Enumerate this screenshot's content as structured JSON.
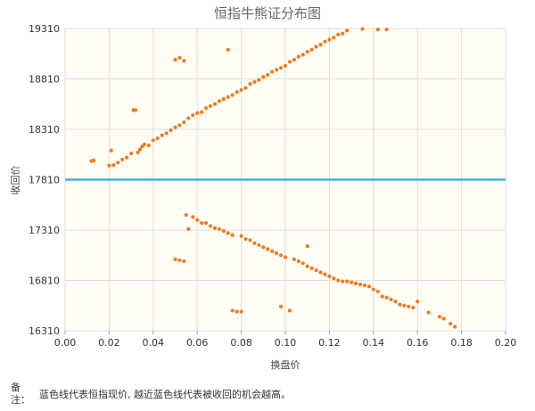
{
  "chart_data": {
    "type": "scatter",
    "title": "恒指牛熊证分布图",
    "xlabel": "换盘价",
    "ylabel": "收回价",
    "xlim": [
      0,
      0.2
    ],
    "ylim": [
      16310,
      19310
    ],
    "x_ticks": [
      "0.00",
      "0.02",
      "0.04",
      "0.06",
      "0.08",
      "0.10",
      "0.12",
      "0.14",
      "0.16",
      "0.18",
      "0.20"
    ],
    "y_ticks": [
      "16310",
      "16810",
      "17310",
      "17810",
      "18310",
      "18810",
      "19310"
    ],
    "reference_line": {
      "y": 17810,
      "color": "#3fb6d4"
    },
    "point_color": "#f07a1c",
    "plot_background": "#fffdf5",
    "grid": true,
    "bull_points": [
      [
        0.012,
        17995
      ],
      [
        0.013,
        18000
      ],
      [
        0.02,
        17950
      ],
      [
        0.021,
        18100
      ],
      [
        0.022,
        17955
      ],
      [
        0.024,
        17980
      ],
      [
        0.026,
        18010
      ],
      [
        0.028,
        18030
      ],
      [
        0.03,
        18070
      ],
      [
        0.031,
        18500
      ],
      [
        0.032,
        18500
      ],
      [
        0.033,
        18080
      ],
      [
        0.034,
        18110
      ],
      [
        0.035,
        18140
      ],
      [
        0.036,
        18160
      ],
      [
        0.038,
        18150
      ],
      [
        0.04,
        18200
      ],
      [
        0.042,
        18220
      ],
      [
        0.044,
        18250
      ],
      [
        0.046,
        18270
      ],
      [
        0.048,
        18300
      ],
      [
        0.05,
        18330
      ],
      [
        0.05,
        19000
      ],
      [
        0.052,
        18350
      ],
      [
        0.052,
        19020
      ],
      [
        0.054,
        18380
      ],
      [
        0.054,
        18990
      ],
      [
        0.056,
        18420
      ],
      [
        0.058,
        18450
      ],
      [
        0.06,
        18470
      ],
      [
        0.062,
        18480
      ],
      [
        0.064,
        18520
      ],
      [
        0.066,
        18540
      ],
      [
        0.068,
        18560
      ],
      [
        0.07,
        18590
      ],
      [
        0.072,
        18610
      ],
      [
        0.074,
        19100
      ],
      [
        0.074,
        18630
      ],
      [
        0.076,
        18650
      ],
      [
        0.078,
        18680
      ],
      [
        0.08,
        18700
      ],
      [
        0.082,
        18720
      ],
      [
        0.084,
        18760
      ],
      [
        0.086,
        18780
      ],
      [
        0.088,
        18800
      ],
      [
        0.09,
        18830
      ],
      [
        0.092,
        18850
      ],
      [
        0.094,
        18880
      ],
      [
        0.096,
        18900
      ],
      [
        0.098,
        18920
      ],
      [
        0.1,
        18940
      ],
      [
        0.102,
        18980
      ],
      [
        0.104,
        19000
      ],
      [
        0.106,
        19030
      ],
      [
        0.108,
        19050
      ],
      [
        0.11,
        19080
      ],
      [
        0.112,
        19100
      ],
      [
        0.114,
        19130
      ],
      [
        0.116,
        19150
      ],
      [
        0.118,
        19180
      ],
      [
        0.12,
        19200
      ],
      [
        0.122,
        19220
      ],
      [
        0.124,
        19250
      ],
      [
        0.126,
        19260
      ],
      [
        0.128,
        19290
      ],
      [
        0.135,
        19305
      ],
      [
        0.142,
        19300
      ],
      [
        0.146,
        19300
      ]
    ],
    "bear_points": [
      [
        0.05,
        17020
      ],
      [
        0.052,
        17010
      ],
      [
        0.054,
        17000
      ],
      [
        0.055,
        17460
      ],
      [
        0.056,
        17320
      ],
      [
        0.058,
        17440
      ],
      [
        0.06,
        17410
      ],
      [
        0.062,
        17380
      ],
      [
        0.064,
        17380
      ],
      [
        0.066,
        17350
      ],
      [
        0.068,
        17330
      ],
      [
        0.07,
        17320
      ],
      [
        0.072,
        17300
      ],
      [
        0.074,
        17280
      ],
      [
        0.076,
        17260
      ],
      [
        0.076,
        16510
      ],
      [
        0.078,
        16500
      ],
      [
        0.08,
        16500
      ],
      [
        0.08,
        17250
      ],
      [
        0.082,
        17220
      ],
      [
        0.084,
        17210
      ],
      [
        0.086,
        17180
      ],
      [
        0.088,
        17160
      ],
      [
        0.09,
        17140
      ],
      [
        0.092,
        17120
      ],
      [
        0.094,
        17100
      ],
      [
        0.096,
        17080
      ],
      [
        0.098,
        17060
      ],
      [
        0.098,
        16550
      ],
      [
        0.1,
        17040
      ],
      [
        0.102,
        16510
      ],
      [
        0.104,
        17020
      ],
      [
        0.106,
        17000
      ],
      [
        0.108,
        16980
      ],
      [
        0.11,
        17150
      ],
      [
        0.11,
        16950
      ],
      [
        0.112,
        16930
      ],
      [
        0.114,
        16910
      ],
      [
        0.116,
        16890
      ],
      [
        0.118,
        16870
      ],
      [
        0.12,
        16850
      ],
      [
        0.122,
        16830
      ],
      [
        0.124,
        16810
      ],
      [
        0.126,
        16800
      ],
      [
        0.128,
        16800
      ],
      [
        0.13,
        16790
      ],
      [
        0.132,
        16780
      ],
      [
        0.134,
        16770
      ],
      [
        0.136,
        16760
      ],
      [
        0.138,
        16750
      ],
      [
        0.14,
        16720
      ],
      [
        0.142,
        16700
      ],
      [
        0.144,
        16650
      ],
      [
        0.146,
        16640
      ],
      [
        0.148,
        16620
      ],
      [
        0.15,
        16600
      ],
      [
        0.152,
        16570
      ],
      [
        0.154,
        16560
      ],
      [
        0.156,
        16550
      ],
      [
        0.158,
        16540
      ],
      [
        0.16,
        16600
      ],
      [
        0.165,
        16490
      ],
      [
        0.17,
        16450
      ],
      [
        0.172,
        16430
      ],
      [
        0.175,
        16380
      ],
      [
        0.177,
        16350
      ]
    ]
  },
  "note": {
    "label": "备注：",
    "text": "蓝色线代表恒指现价, 越近蓝色线代表被收回的机会越高。"
  }
}
